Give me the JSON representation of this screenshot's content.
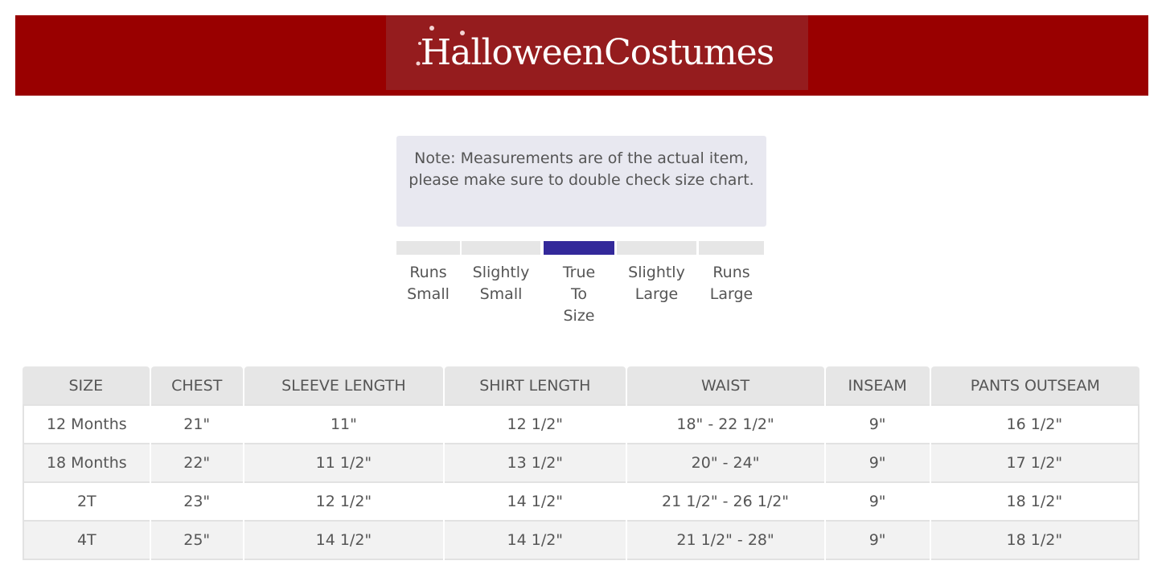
{
  "brand": {
    "logo_text": "HalloweenCostumes",
    "color": "#990000"
  },
  "note": "Note: Measurements are of the actual item, please make sure to double check size chart.",
  "fit_scale": {
    "selected": 2,
    "accent": "#33299a",
    "options": [
      [
        "Runs",
        "Small"
      ],
      [
        "Slightly",
        "Small"
      ],
      [
        "True",
        "To",
        "Size"
      ],
      [
        "Slightly",
        "Large"
      ],
      [
        "Runs",
        "Large"
      ]
    ]
  },
  "table": {
    "headers": [
      "SIZE",
      "CHEST",
      "SLEEVE LENGTH",
      "SHIRT LENGTH",
      "WAIST",
      "INSEAM",
      "PANTS OUTSEAM"
    ],
    "rows": [
      [
        "12 Months",
        "21\"",
        "11\"",
        "12 1/2\"",
        "18\" - 22 1/2\"",
        "9\"",
        "16 1/2\""
      ],
      [
        "18 Months",
        "22\"",
        "11 1/2\"",
        "13 1/2\"",
        "20\" - 24\"",
        "9\"",
        "17 1/2\""
      ],
      [
        "2T",
        "23\"",
        "12 1/2\"",
        "14 1/2\"",
        "21 1/2\" - 26 1/2\"",
        "9\"",
        "18 1/2\""
      ],
      [
        "4T",
        "25\"",
        "14 1/2\"",
        "14 1/2\"",
        "21 1/2\" - 28\"",
        "9\"",
        "18 1/2\""
      ]
    ]
  }
}
